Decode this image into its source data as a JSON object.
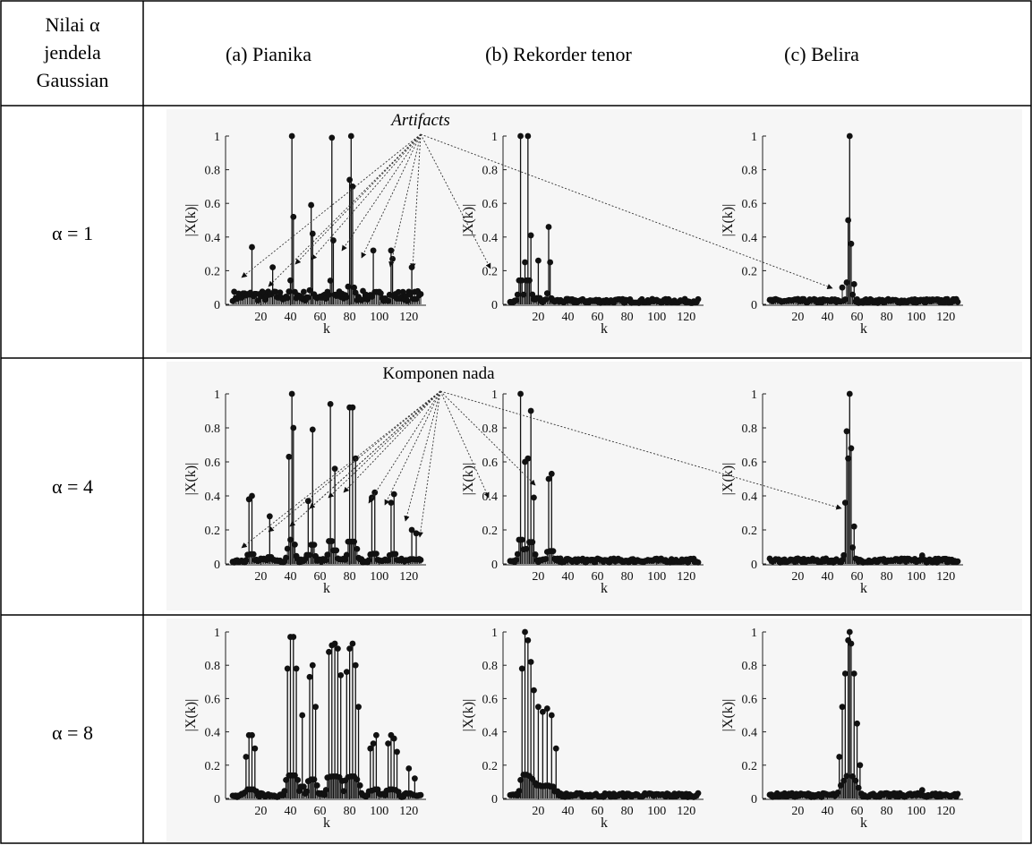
{
  "table": {
    "header": {
      "alpha_label_lines": [
        "Nilai α",
        "jendela",
        "Gaussian"
      ],
      "columns": [
        "(a) Pianika",
        "(b) Rekorder tenor",
        "(c)  Belira"
      ]
    },
    "rows": [
      {
        "label": "α = 1"
      },
      {
        "label": "α = 4"
      },
      {
        "label": "α = 8"
      }
    ],
    "annotations": [
      {
        "text": "Artifacts",
        "italic": true
      },
      {
        "text": "Komponen nada",
        "italic": false
      }
    ]
  },
  "axis_text": {
    "ylabel": "|X(k)|",
    "xlabel": "k",
    "yticks": [
      "0",
      "0.2",
      "0.4",
      "0.6",
      "0.8",
      "1"
    ],
    "xticks": [
      "20",
      "40",
      "60",
      "80",
      "100",
      "120"
    ]
  },
  "chart_data": [
    {
      "type": "stem",
      "row": "α = 1",
      "column": "(a) Pianika",
      "xlim": [
        1,
        128
      ],
      "ylim": [
        0,
        1
      ],
      "peaks": [
        {
          "k": 14,
          "v": 0.34
        },
        {
          "k": 28,
          "v": 0.22
        },
        {
          "k": 41,
          "v": 1.0
        },
        {
          "k": 42,
          "v": 0.52
        },
        {
          "k": 54,
          "v": 0.59
        },
        {
          "k": 55,
          "v": 0.42
        },
        {
          "k": 68,
          "v": 0.99
        },
        {
          "k": 69,
          "v": 0.38
        },
        {
          "k": 80,
          "v": 0.74
        },
        {
          "k": 81,
          "v": 1.0
        },
        {
          "k": 82,
          "v": 0.7
        },
        {
          "k": 96,
          "v": 0.32
        },
        {
          "k": 108,
          "v": 0.32
        },
        {
          "k": 109,
          "v": 0.27
        },
        {
          "k": 122,
          "v": 0.22
        }
      ],
      "floor": 0.05
    },
    {
      "type": "stem",
      "row": "α = 1",
      "column": "(b) Rekorder tenor",
      "xlim": [
        1,
        128
      ],
      "ylim": [
        0,
        1
      ],
      "peaks": [
        {
          "k": 8,
          "v": 1.0
        },
        {
          "k": 11,
          "v": 0.25
        },
        {
          "k": 13,
          "v": 1.0
        },
        {
          "k": 15,
          "v": 0.41
        },
        {
          "k": 20,
          "v": 0.26
        },
        {
          "k": 27,
          "v": 0.46
        },
        {
          "k": 28,
          "v": 0.25
        }
      ],
      "floor": 0.02
    },
    {
      "type": "stem",
      "row": "α = 1",
      "column": "(c) Belira",
      "xlim": [
        1,
        128
      ],
      "ylim": [
        0,
        1
      ],
      "peaks": [
        {
          "k": 50,
          "v": 0.1
        },
        {
          "k": 53,
          "v": 0.13
        },
        {
          "k": 54,
          "v": 0.5
        },
        {
          "k": 55,
          "v": 1.0
        },
        {
          "k": 56,
          "v": 0.36
        },
        {
          "k": 58,
          "v": 0.12
        }
      ],
      "floor": 0.02
    },
    {
      "type": "stem",
      "row": "α = 4",
      "column": "(a) Pianika",
      "xlim": [
        1,
        128
      ],
      "ylim": [
        0,
        1
      ],
      "peaks": [
        {
          "k": 12,
          "v": 0.38
        },
        {
          "k": 14,
          "v": 0.4
        },
        {
          "k": 26,
          "v": 0.28
        },
        {
          "k": 39,
          "v": 0.63
        },
        {
          "k": 41,
          "v": 1.0
        },
        {
          "k": 42,
          "v": 0.8
        },
        {
          "k": 52,
          "v": 0.37
        },
        {
          "k": 55,
          "v": 0.79
        },
        {
          "k": 67,
          "v": 0.94
        },
        {
          "k": 70,
          "v": 0.56
        },
        {
          "k": 80,
          "v": 0.92
        },
        {
          "k": 82,
          "v": 0.92
        },
        {
          "k": 84,
          "v": 0.62
        },
        {
          "k": 95,
          "v": 0.39
        },
        {
          "k": 97,
          "v": 0.42
        },
        {
          "k": 108,
          "v": 0.36
        },
        {
          "k": 110,
          "v": 0.41
        },
        {
          "k": 122,
          "v": 0.2
        },
        {
          "k": 125,
          "v": 0.18
        }
      ],
      "floor": 0.02
    },
    {
      "type": "stem",
      "row": "α = 4",
      "column": "(b) Rekorder tenor",
      "xlim": [
        1,
        128
      ],
      "ylim": [
        0,
        1
      ],
      "peaks": [
        {
          "k": 8,
          "v": 1.0
        },
        {
          "k": 11,
          "v": 0.6
        },
        {
          "k": 13,
          "v": 0.62
        },
        {
          "k": 15,
          "v": 0.9
        },
        {
          "k": 17,
          "v": 0.39
        },
        {
          "k": 27,
          "v": 0.5
        },
        {
          "k": 29,
          "v": 0.53
        }
      ],
      "floor": 0.02
    },
    {
      "type": "stem",
      "row": "α = 4",
      "column": "(c) Belira",
      "xlim": [
        1,
        128
      ],
      "ylim": [
        0,
        1
      ],
      "peaks": [
        {
          "k": 52,
          "v": 0.36
        },
        {
          "k": 53,
          "v": 0.78
        },
        {
          "k": 54,
          "v": 0.62
        },
        {
          "k": 55,
          "v": 1.0
        },
        {
          "k": 56,
          "v": 0.68
        },
        {
          "k": 58,
          "v": 0.22
        },
        {
          "k": 104,
          "v": 0.05
        }
      ],
      "floor": 0.02
    },
    {
      "type": "stem",
      "row": "α = 8",
      "column": "(a) Pianika",
      "xlim": [
        1,
        128
      ],
      "ylim": [
        0,
        1
      ],
      "peaks": [
        {
          "k": 10,
          "v": 0.25
        },
        {
          "k": 12,
          "v": 0.38
        },
        {
          "k": 14,
          "v": 0.38
        },
        {
          "k": 16,
          "v": 0.3
        },
        {
          "k": 38,
          "v": 0.78
        },
        {
          "k": 40,
          "v": 0.97
        },
        {
          "k": 42,
          "v": 0.97
        },
        {
          "k": 44,
          "v": 0.78
        },
        {
          "k": 48,
          "v": 0.5
        },
        {
          "k": 53,
          "v": 0.73
        },
        {
          "k": 55,
          "v": 0.8
        },
        {
          "k": 57,
          "v": 0.55
        },
        {
          "k": 66,
          "v": 0.88
        },
        {
          "k": 68,
          "v": 0.92
        },
        {
          "k": 70,
          "v": 0.93
        },
        {
          "k": 72,
          "v": 0.9
        },
        {
          "k": 74,
          "v": 0.74
        },
        {
          "k": 78,
          "v": 0.76
        },
        {
          "k": 80,
          "v": 0.9
        },
        {
          "k": 82,
          "v": 0.93
        },
        {
          "k": 84,
          "v": 0.8
        },
        {
          "k": 86,
          "v": 0.55
        },
        {
          "k": 94,
          "v": 0.3
        },
        {
          "k": 96,
          "v": 0.33
        },
        {
          "k": 98,
          "v": 0.38
        },
        {
          "k": 106,
          "v": 0.33
        },
        {
          "k": 108,
          "v": 0.38
        },
        {
          "k": 110,
          "v": 0.36
        },
        {
          "k": 112,
          "v": 0.28
        },
        {
          "k": 120,
          "v": 0.18
        },
        {
          "k": 124,
          "v": 0.12
        }
      ],
      "floor": 0.02
    },
    {
      "type": "stem",
      "row": "α = 8",
      "column": "(b) Rekorder tenor",
      "xlim": [
        1,
        128
      ],
      "ylim": [
        0,
        1
      ],
      "peaks": [
        {
          "k": 9,
          "v": 0.78
        },
        {
          "k": 11,
          "v": 1.0
        },
        {
          "k": 13,
          "v": 0.95
        },
        {
          "k": 15,
          "v": 0.82
        },
        {
          "k": 17,
          "v": 0.65
        },
        {
          "k": 20,
          "v": 0.55
        },
        {
          "k": 23,
          "v": 0.52
        },
        {
          "k": 26,
          "v": 0.54
        },
        {
          "k": 29,
          "v": 0.5
        },
        {
          "k": 32,
          "v": 0.3
        }
      ],
      "floor": 0.02
    },
    {
      "type": "stem",
      "row": "α = 8",
      "column": "(c) Belira",
      "xlim": [
        1,
        128
      ],
      "ylim": [
        0,
        1
      ],
      "peaks": [
        {
          "k": 48,
          "v": 0.25
        },
        {
          "k": 50,
          "v": 0.55
        },
        {
          "k": 52,
          "v": 0.75
        },
        {
          "k": 54,
          "v": 0.95
        },
        {
          "k": 55,
          "v": 1.0
        },
        {
          "k": 56,
          "v": 0.93
        },
        {
          "k": 58,
          "v": 0.75
        },
        {
          "k": 60,
          "v": 0.45
        },
        {
          "k": 62,
          "v": 0.2
        },
        {
          "k": 104,
          "v": 0.05
        }
      ],
      "floor": 0.02
    }
  ]
}
